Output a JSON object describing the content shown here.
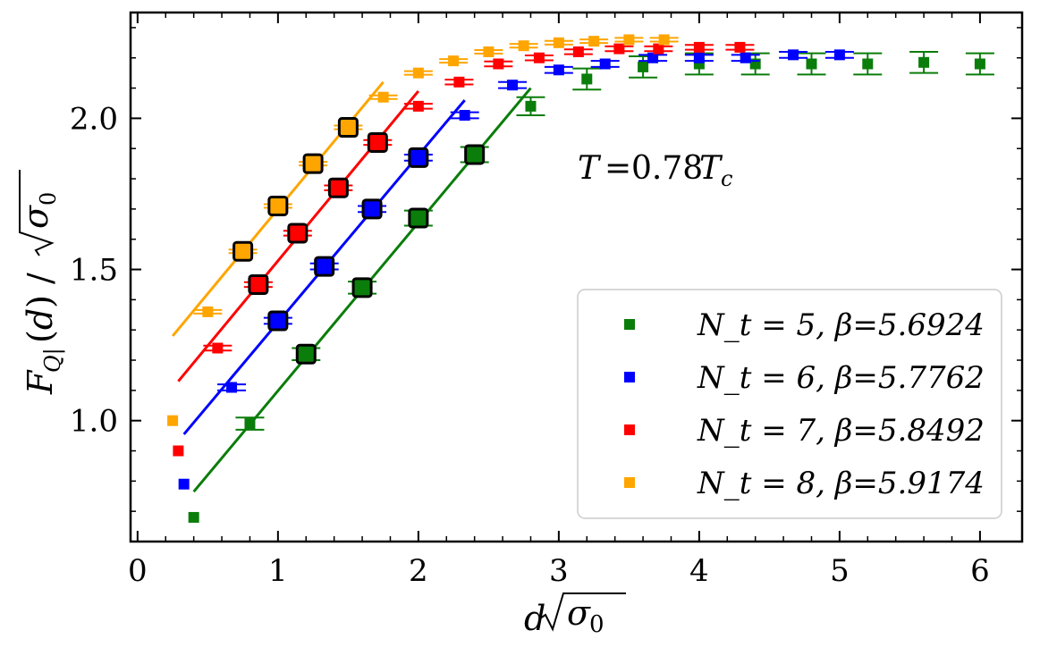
{
  "chart_data": {
    "type": "scatter",
    "xlabel": "d√σ₀",
    "ylabel": "F_{Q|}(d) / √σ₀",
    "xlim": [
      -0.05,
      6.3
    ],
    "ylim": [
      0.6,
      2.35
    ],
    "xticks": [
      0,
      1,
      2,
      3,
      4,
      5,
      6
    ],
    "xtick_labels": [
      "0",
      "1",
      "2",
      "3",
      "4",
      "5",
      "6"
    ],
    "yticks": [
      1.0,
      1.5,
      2.0
    ],
    "ytick_labels": [
      "1.0",
      "1.5",
      "2.0"
    ],
    "grid": false,
    "legend_position": "bottom-right",
    "annotation": "T = 0.78T_c",
    "series": [
      {
        "name": "N_t = 5, β=5.6924",
        "label": "N_t = 5,  β=5.6924",
        "color": "#0a7d0a",
        "points": [
          [
            0.4,
            0.68
          ],
          [
            0.8,
            0.99
          ],
          [
            1.2,
            1.22
          ],
          [
            1.6,
            1.44
          ],
          [
            2.0,
            1.67
          ],
          [
            2.4,
            1.88
          ],
          [
            2.8,
            2.04
          ],
          [
            3.2,
            2.13
          ],
          [
            3.6,
            2.17
          ],
          [
            4.0,
            2.18
          ],
          [
            4.4,
            2.18
          ],
          [
            4.8,
            2.18
          ],
          [
            5.2,
            2.18
          ],
          [
            5.6,
            2.185
          ],
          [
            6.0,
            2.18
          ]
        ],
        "yerr": [
          0.0,
          0.02,
          0.02,
          0.02,
          0.025,
          0.025,
          0.03,
          0.035,
          0.035,
          0.035,
          0.035,
          0.035,
          0.035,
          0.035,
          0.035
        ],
        "fit_indices": [
          2,
          3,
          4,
          5
        ],
        "fit_line": [
          [
            0.4,
            0.765
          ],
          [
            2.8,
            2.1
          ]
        ]
      },
      {
        "name": "N_t = 6, β=5.7762",
        "label": "N_t = 6,  β=5.7762",
        "color": "#0000ff",
        "points": [
          [
            0.33,
            0.79
          ],
          [
            0.67,
            1.11
          ],
          [
            1.0,
            1.33
          ],
          [
            1.33,
            1.51
          ],
          [
            1.67,
            1.7
          ],
          [
            2.0,
            1.87
          ],
          [
            2.33,
            2.01
          ],
          [
            2.67,
            2.11
          ],
          [
            3.0,
            2.16
          ],
          [
            3.33,
            2.18
          ],
          [
            3.67,
            2.2
          ],
          [
            4.0,
            2.2
          ],
          [
            4.33,
            2.2
          ],
          [
            4.67,
            2.21
          ],
          [
            5.0,
            2.21
          ]
        ],
        "yerr": [
          0.0,
          0.01,
          0.01,
          0.01,
          0.01,
          0.01,
          0.01,
          0.01,
          0.01,
          0.01,
          0.01,
          0.01,
          0.01,
          0.01,
          0.01
        ],
        "fit_indices": [
          2,
          3,
          4,
          5
        ],
        "fit_line": [
          [
            0.33,
            0.955
          ],
          [
            2.33,
            2.06
          ]
        ]
      },
      {
        "name": "N_t = 7, β=5.8492",
        "label": "N_t = 7,  β=5.8492",
        "color": "#ff0000",
        "points": [
          [
            0.29,
            0.9
          ],
          [
            0.57,
            1.24
          ],
          [
            0.86,
            1.45
          ],
          [
            1.14,
            1.62
          ],
          [
            1.43,
            1.77
          ],
          [
            1.71,
            1.92
          ],
          [
            2.0,
            2.04
          ],
          [
            2.29,
            2.12
          ],
          [
            2.57,
            2.18
          ],
          [
            2.86,
            2.2
          ],
          [
            3.14,
            2.22
          ],
          [
            3.43,
            2.23
          ],
          [
            3.71,
            2.23
          ],
          [
            4.0,
            2.235
          ],
          [
            4.29,
            2.235
          ]
        ],
        "yerr": [
          0.0,
          0.008,
          0.008,
          0.008,
          0.008,
          0.008,
          0.008,
          0.008,
          0.008,
          0.008,
          0.008,
          0.008,
          0.008,
          0.008,
          0.008
        ],
        "fit_indices": [
          2,
          3,
          4,
          5
        ],
        "fit_line": [
          [
            0.29,
            1.13
          ],
          [
            2.0,
            2.09
          ]
        ]
      },
      {
        "name": "N_t = 8, β=5.9174",
        "label": "N_t = 8,  β=5.9174",
        "color": "#ffa500",
        "points": [
          [
            0.25,
            1.0
          ],
          [
            0.5,
            1.36
          ],
          [
            0.75,
            1.56
          ],
          [
            1.0,
            1.71
          ],
          [
            1.25,
            1.85
          ],
          [
            1.5,
            1.97
          ],
          [
            1.75,
            2.07
          ],
          [
            2.0,
            2.15
          ],
          [
            2.25,
            2.19
          ],
          [
            2.5,
            2.22
          ],
          [
            2.75,
            2.24
          ],
          [
            3.0,
            2.25
          ],
          [
            3.25,
            2.255
          ],
          [
            3.5,
            2.26
          ],
          [
            3.75,
            2.26
          ]
        ],
        "yerr": [
          0.0,
          0.006,
          0.006,
          0.006,
          0.006,
          0.006,
          0.006,
          0.006,
          0.006,
          0.006,
          0.006,
          0.006,
          0.006,
          0.006,
          0.006
        ],
        "fit_indices": [
          2,
          3,
          4,
          5
        ],
        "fit_line": [
          [
            0.25,
            1.28
          ],
          [
            1.75,
            2.12
          ]
        ]
      }
    ]
  }
}
